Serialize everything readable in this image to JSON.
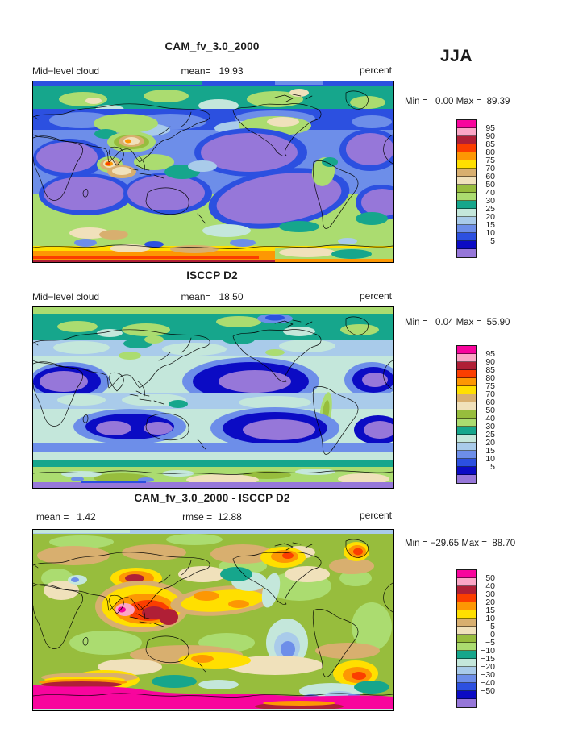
{
  "season": "JJA",
  "palette": {
    "magenta": "#F8059D",
    "pink": "#FBA6C6",
    "crimson": "#B01F36",
    "red": "#FB3E00",
    "orange": "#FD9703",
    "yellow": "#FFDF00",
    "tan": "#D8AF6F",
    "cream": "#F0E1BB",
    "olive": "#97BD3D",
    "lightgreen": "#ABDC70",
    "teal": "#16A68C",
    "palecyan": "#C4E7DB",
    "lightblue": "#A9CBEA",
    "cornflower": "#6D8EE9",
    "royal": "#2C50E0",
    "navy": "#0B0BC4",
    "purple": "#9677D9"
  },
  "colorbar_colors": [
    "magenta",
    "pink",
    "crimson",
    "red",
    "orange",
    "yellow",
    "tan",
    "cream",
    "olive",
    "lightgreen",
    "teal",
    "palecyan",
    "lightblue",
    "cornflower",
    "royal",
    "navy",
    "purple"
  ],
  "panels": [
    {
      "title": "CAM_fv_3.0_2000",
      "var_label": "Mid−level cloud",
      "mean_text": "mean=   19.93",
      "units": "percent",
      "minmax": "Min =   0.00 Max =  89.39",
      "colorbar_labels": [
        "95",
        "90",
        "85",
        "80",
        "75",
        "70",
        "60",
        "50",
        "40",
        "30",
        "25",
        "20",
        "15",
        "10",
        "5"
      ]
    },
    {
      "title": "ISCCP D2",
      "var_label": "Mid−level cloud",
      "mean_text": "mean=   18.50",
      "units": "percent",
      "minmax": "Min =   0.04 Max =  55.90",
      "colorbar_labels": [
        "95",
        "90",
        "85",
        "80",
        "75",
        "70",
        "60",
        "50",
        "40",
        "30",
        "25",
        "20",
        "15",
        "10",
        "5"
      ]
    },
    {
      "title": "CAM_fv_3.0_2000 - ISCCP D2",
      "mean_text": "mean =   1.42",
      "rmse_text": "rmse =  12.88",
      "units": "percent",
      "minmax": "Min = −29.65 Max =  88.70",
      "colorbar_labels": [
        "50",
        "40",
        "30",
        "20",
        "15",
        "10",
        "5",
        "0",
        "−5",
        "−10",
        "−15",
        "−20",
        "−30",
        "−40",
        "−50"
      ]
    }
  ],
  "chart_data": [
    {
      "type": "heatmap",
      "subtype": "filled-contour global map",
      "title": "CAM_fv_3.0_2000",
      "variable": "Mid-level cloud",
      "season": "JJA",
      "units": "percent",
      "mean": 19.93,
      "min": 0.0,
      "max": 89.39,
      "contour_levels": [
        5,
        10,
        15,
        20,
        25,
        30,
        40,
        50,
        60,
        70,
        75,
        80,
        85,
        90,
        95
      ],
      "projection": "cylindrical equidistant, lon 0–360E, lat 90N–90S",
      "pattern_notes": "Low (purple/blue, <10%) subtropical oceans; teal/green Arctic band; green 30–40% southern mid-latitude band; high values (yellow/orange/red, 70–90%) along Antarctic margin; local maximum bullseye over Tibet/Arabian Sea"
    },
    {
      "type": "heatmap",
      "subtype": "filled-contour global map",
      "title": "ISCCP D2",
      "variable": "Mid-level cloud",
      "season": "JJA",
      "units": "percent",
      "mean": 18.5,
      "min": 0.04,
      "max": 55.9,
      "contour_levels": [
        5,
        10,
        15,
        20,
        25,
        30,
        40,
        50,
        60,
        70,
        75,
        80,
        85,
        90,
        95
      ],
      "projection": "cylindrical equidistant, lon 0–360E, lat 90N–90S",
      "pattern_notes": "Pale-cyan/blue oceans with navy/purple subtropical minima; yellow-green polar bands; cream 50–60% patches over Antarctica; purple band at southern edge; no values above ~56%"
    },
    {
      "type": "heatmap",
      "subtype": "filled-contour difference map",
      "title": "CAM_fv_3.0_2000 - ISCCP D2",
      "variable": "Mid-level cloud difference",
      "season": "JJA",
      "units": "percent",
      "mean": 1.42,
      "rmse": 12.88,
      "min": -29.65,
      "max": 88.7,
      "contour_levels": [
        -50,
        -40,
        -30,
        -20,
        -15,
        -10,
        -5,
        0,
        5,
        10,
        15,
        20,
        30,
        40,
        50
      ],
      "projection": "cylindrical equidistant, lon 0–360E, lat 90N–90S",
      "pattern_notes": "Green (−5–0) background; tan/cream weak positive bands; strong positive (orange/red/crimson/pink) over S Asia, NE Canada, Greenland, S Indian Ocean, Patagonia; negative teal/cyan/cornflower patches over NE Pacific, SE Pacific, Southern Ocean; large magenta (>50) positive band across Antarctica"
    }
  ]
}
